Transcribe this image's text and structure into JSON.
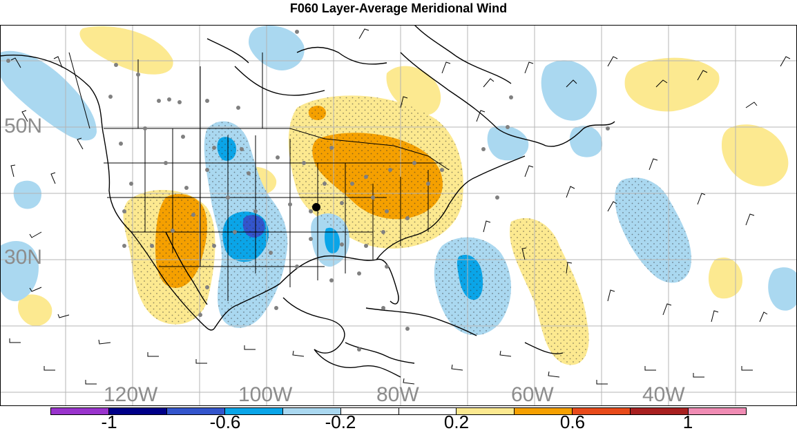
{
  "title": "F060 Layer-Average Meridional Wind",
  "lat_labels": [
    "50N",
    "30N"
  ],
  "lon_labels": [
    "120W",
    "100W",
    "80W",
    "60W",
    "40W"
  ],
  "colorbar": {
    "colors": [
      "#9933cc",
      "#000088",
      "#3355cc",
      "#0aa5e8",
      "#aad8f0",
      "#ffffff",
      "#ffffff",
      "#fce990",
      "#f5a000",
      "#e84a1a",
      "#a82020",
      "#f08cb4"
    ],
    "tick_labels": [
      "-1",
      "-0.6",
      "-0.2",
      "0.2",
      "0.6",
      "1"
    ]
  },
  "colors": {
    "light_blue": "#aad8f0",
    "blue": "#0aa5e8",
    "dark_blue": "#3355cc",
    "light_yellow": "#fce990",
    "orange": "#f5a000",
    "grid": "#b4b4b4",
    "coast": "#000000"
  }
}
